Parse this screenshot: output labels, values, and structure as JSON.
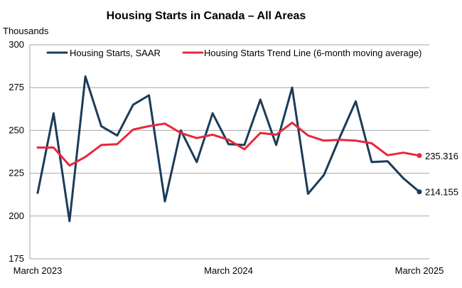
{
  "chart_data": {
    "type": "line",
    "title": "Housing Starts in Canada – All Areas",
    "ylabel": "Thousands",
    "xlabel": "",
    "ylim": [
      175,
      300
    ],
    "yticks": [
      175,
      200,
      225,
      250,
      275,
      300
    ],
    "xtick_labels": [
      {
        "index": 0,
        "label": "March 2023"
      },
      {
        "index": 12,
        "label": "March 2024"
      },
      {
        "index": 24,
        "label": "March 2025"
      }
    ],
    "grid": true,
    "legend_position": "top",
    "series": [
      {
        "name": "Housing Starts, SAAR",
        "color": "#1b3c5a",
        "values": [
          213.5,
          260.0,
          197.0,
          281.5,
          252.5,
          247.0,
          265.0,
          270.5,
          208.5,
          250.0,
          231.5,
          260.0,
          242.0,
          241.5,
          268.0,
          241.5,
          275.0,
          213.0,
          224.0,
          246.0,
          267.0,
          231.5,
          232.0,
          222.0,
          214.155
        ],
        "end_label": "214.155"
      },
      {
        "name": "Housing Starts Trend Line (6-month moving average)",
        "color": "#e8283c",
        "values": [
          240.0,
          240.0,
          229.5,
          234.5,
          241.5,
          242.0,
          250.5,
          252.5,
          254.0,
          248.5,
          245.5,
          247.5,
          244.5,
          239.0,
          248.5,
          247.5,
          254.5,
          247.0,
          244.0,
          244.5,
          244.0,
          242.5,
          235.5,
          237.0,
          235.316
        ],
        "end_label": "235.316"
      }
    ]
  }
}
